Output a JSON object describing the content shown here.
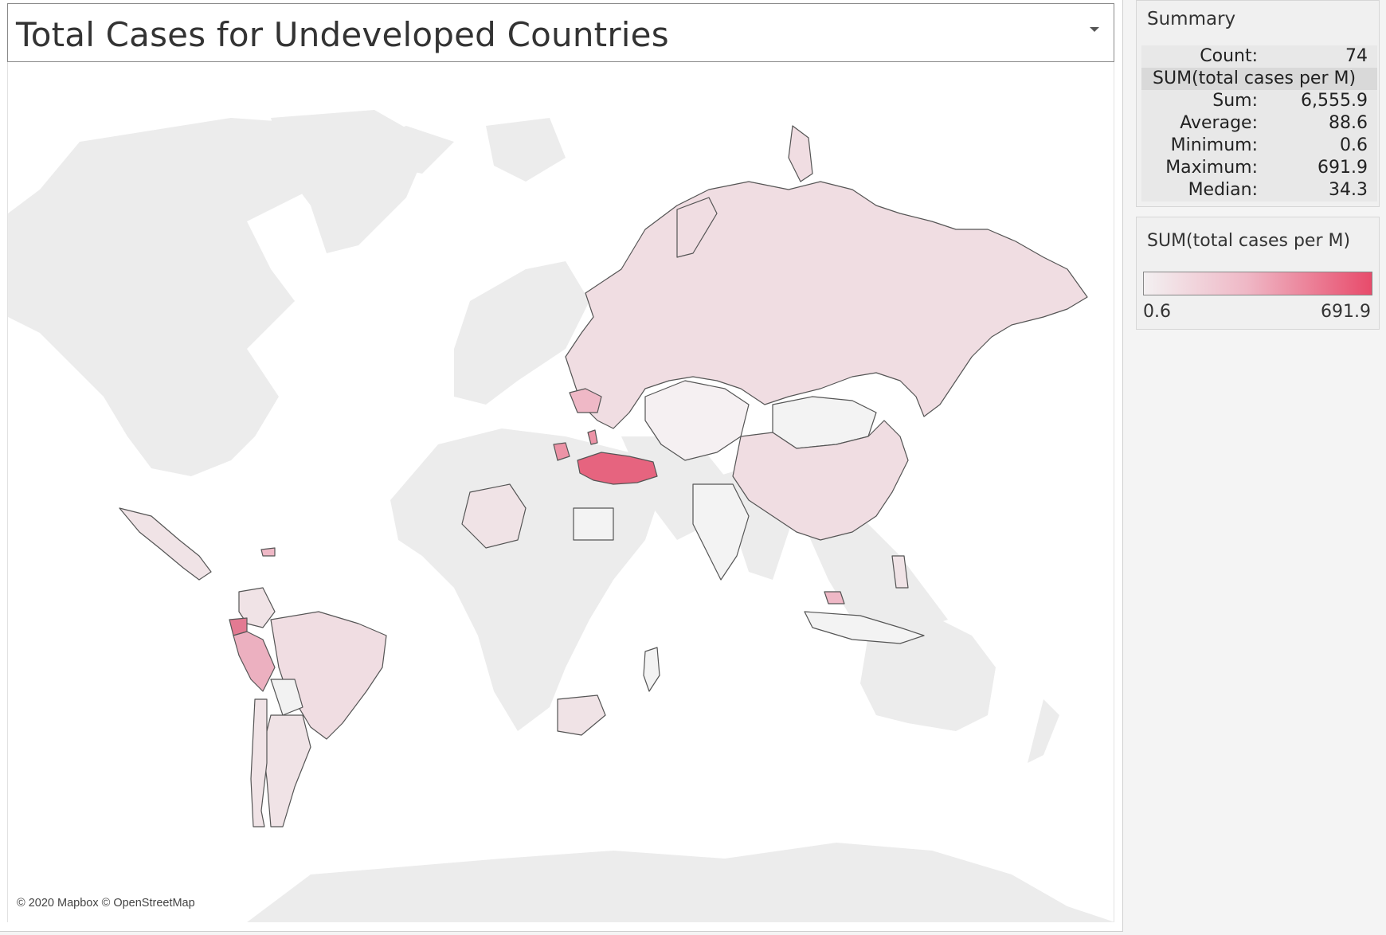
{
  "header": {
    "title": "Total Cases for Undeveloped Countries"
  },
  "map": {
    "attribution": "© 2020 Mapbox © OpenStreetMap"
  },
  "summary": {
    "title": "Summary",
    "count_label": "Count:",
    "count_value": "74",
    "measure_name": "SUM(total cases per M)",
    "rows": [
      {
        "label": "Sum:",
        "value": "6,555.9"
      },
      {
        "label": "Average:",
        "value": "88.6"
      },
      {
        "label": "Minimum:",
        "value": "0.6"
      },
      {
        "label": "Maximum:",
        "value": "691.9"
      },
      {
        "label": "Median:",
        "value": "34.3"
      }
    ]
  },
  "legend": {
    "title": "SUM(total cases per M)",
    "min_label": "0.6",
    "max_label": "691.9",
    "color_low": "#f3f0f1",
    "color_high": "#e84b6b"
  },
  "colors": {
    "land_base": "#ececec",
    "land_uncolored": "#f0f0f0",
    "low": "#f0dde2",
    "mid": "#efb8c6",
    "high": "#e6647f",
    "border": "#555555"
  }
}
